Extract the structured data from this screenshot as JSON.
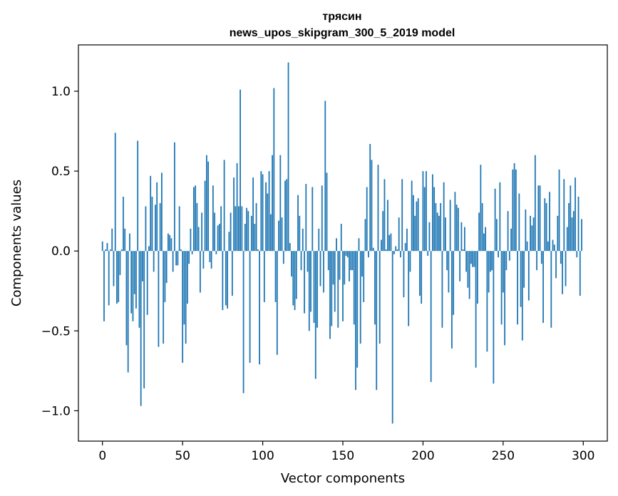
{
  "chart_data": {
    "type": "bar",
    "title_line1": "трясин",
    "title_line2": "news_upos_skipgram_300_5_2019 model",
    "xlabel": "Vector components",
    "ylabel": "Components values",
    "xlim": [
      -15,
      315
    ],
    "ylim": [
      -1.19,
      1.29
    ],
    "x_ticks": [
      0,
      50,
      100,
      150,
      200,
      250,
      300
    ],
    "y_ticks": [
      -1.0,
      -0.5,
      0.0,
      0.5,
      1.0
    ],
    "y_tick_labels": [
      "−1.0",
      "−0.5",
      "0.0",
      "0.5",
      "1.0"
    ],
    "bar_color": "#1f77b4",
    "values": [
      0.06,
      -0.44,
      0.01,
      0.05,
      -0.34,
      0.01,
      0.14,
      -0.22,
      0.74,
      -0.33,
      -0.32,
      -0.15,
      0.01,
      0.34,
      0.14,
      -0.59,
      -0.76,
      0.11,
      -0.39,
      -0.44,
      -0.27,
      -0.36,
      0.69,
      -0.48,
      -0.97,
      -0.19,
      -0.86,
      0.28,
      -0.4,
      0.03,
      0.47,
      0.34,
      -0.13,
      0.29,
      0.43,
      -0.6,
      0.3,
      0.49,
      -0.58,
      -0.32,
      -0.2,
      0.11,
      0.1,
      0.08,
      -0.13,
      0.68,
      -0.09,
      -0.09,
      0.28,
      0.01,
      -0.7,
      -0.46,
      -0.58,
      -0.33,
      -0.08,
      0.14,
      -0.02,
      0.4,
      0.41,
      0.3,
      0.15,
      -0.26,
      0.24,
      -0.11,
      0.44,
      0.6,
      0.56,
      -0.07,
      -0.11,
      0.41,
      0.24,
      -0.02,
      0.16,
      0.17,
      0.28,
      -0.37,
      0.57,
      -0.34,
      -0.36,
      0.12,
      0.24,
      -0.28,
      0.46,
      0.28,
      0.55,
      0.28,
      1.01,
      0.28,
      -0.89,
      0.17,
      0.27,
      0.25,
      -0.7,
      0.22,
      0.46,
      0.17,
      0.3,
      0.01,
      -0.71,
      0.5,
      0.48,
      -0.32,
      0.43,
      0.36,
      0.5,
      0.23,
      0.6,
      1.02,
      -0.32,
      -0.65,
      0.19,
      0.6,
      0.21,
      -0.08,
      0.44,
      0.45,
      1.18,
      0.05,
      -0.16,
      -0.34,
      -0.37,
      -0.3,
      0.35,
      0.22,
      -0.12,
      0.14,
      -0.39,
      0.42,
      -0.13,
      -0.5,
      -0.38,
      0.4,
      -0.45,
      -0.8,
      -0.48,
      0.14,
      -0.22,
      0.41,
      -0.26,
      0.94,
      0.49,
      -0.12,
      -0.55,
      -0.47,
      -0.21,
      -0.38,
      0.08,
      -0.48,
      -0.18,
      0.17,
      -0.44,
      -0.21,
      -0.03,
      -0.04,
      -0.19,
      -0.12,
      -0.12,
      -0.46,
      -0.87,
      -0.73,
      0.08,
      -0.58,
      -0.16,
      -0.32,
      0.2,
      0.4,
      -0.04,
      0.67,
      0.57,
      0.02,
      -0.46,
      -0.87,
      0.54,
      -0.58,
      0.07,
      0.25,
      0.45,
      0.01,
      0.32,
      0.1,
      0.11,
      -1.08,
      -0.02,
      0.03,
      0.01,
      0.21,
      -0.04,
      0.45,
      -0.29,
      0.05,
      0.14,
      -0.47,
      -0.13,
      0.44,
      0.35,
      0.22,
      0.31,
      0.33,
      -0.28,
      -0.33,
      0.5,
      0.4,
      0.5,
      -0.03,
      0.18,
      -0.82,
      0.48,
      0.4,
      0.3,
      0.24,
      0.22,
      0.3,
      -0.48,
      0.43,
      0.21,
      -0.12,
      -0.26,
      0.32,
      -0.61,
      -0.4,
      0.37,
      0.29,
      0.27,
      -0.19,
      0.18,
      0.01,
      0.15,
      -0.13,
      -0.23,
      -0.3,
      -0.08,
      -0.1,
      -0.1,
      -0.73,
      -0.33,
      0.24,
      0.54,
      0.3,
      0.11,
      0.15,
      -0.63,
      -0.26,
      -0.13,
      -0.12,
      -0.83,
      0.39,
      0.2,
      -0.04,
      0.43,
      -0.46,
      -0.26,
      -0.59,
      -0.12,
      0.25,
      -0.06,
      0.14,
      0.51,
      0.55,
      0.51,
      -0.46,
      0.36,
      -0.35,
      -0.56,
      -0.23,
      0.26,
      0.06,
      -0.31,
      0.22,
      0.16,
      0.21,
      0.6,
      -0.12,
      0.41,
      0.41,
      -0.08,
      -0.45,
      0.33,
      0.3,
      0.06,
      0.37,
      -0.48,
      0.07,
      0.04,
      -0.17,
      0.22,
      0.51,
      -0.08,
      -0.27,
      0.45,
      -0.22,
      0.15,
      0.3,
      0.41,
      0.21,
      0.25,
      0.46,
      -0.04,
      0.34,
      -0.28,
      0.2
    ]
  }
}
